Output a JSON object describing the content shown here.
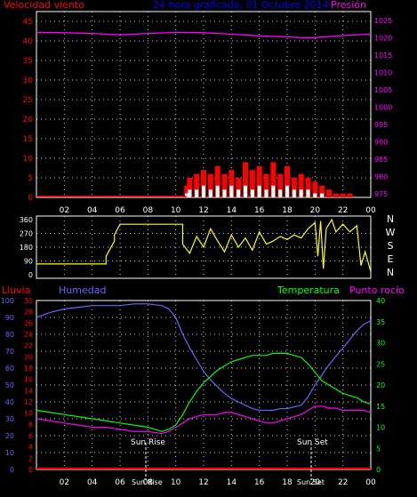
{
  "header": {
    "title": "24 hora graficada, 01 Octubre 2014",
    "left_label": "Velocidad viento",
    "right_label": "Presión"
  },
  "wind_dir_labels": [
    "N",
    "W",
    "S",
    "E",
    "N"
  ],
  "bottom_header": {
    "rain": "Lluvia",
    "humidity": "Humedad",
    "temperature": "Temperatura",
    "dewpoint": "Punto rocío"
  },
  "sun": {
    "rise": "Sun Rise",
    "set": "Sun Set",
    "rise_time": "Sun Rise",
    "set_time": "Sun Set"
  },
  "colors": {
    "wind": "#ff0000",
    "gust": "#ffffff",
    "avg_wind": "#00ff00",
    "pressure": "#ff00ff",
    "direction": "#ffff00",
    "humidity": "#6666ff",
    "temperature": "#00ff00",
    "dewpoint": "#ff00ff",
    "rain": "#ff0000",
    "grid": "#ffffff"
  },
  "chart_data": [
    {
      "type": "line",
      "title": "24 hora graficada, 01 Octubre 2014",
      "x_ticks": [
        "02",
        "04",
        "06",
        "08",
        "10",
        "12",
        "14",
        "16",
        "18",
        "20",
        "22",
        "00"
      ],
      "x_range_hours": [
        0,
        24
      ],
      "y_left": {
        "label": "Velocidad viento",
        "ticks": [
          0,
          5,
          10,
          15,
          20,
          25,
          30,
          35,
          40,
          45
        ],
        "range": [
          0,
          47.5
        ]
      },
      "y_right": {
        "label": "Presión",
        "ticks": [
          975,
          980,
          985,
          990,
          995,
          1000,
          1005,
          1010,
          1015,
          1020,
          1025
        ],
        "range": [
          974,
          1027.5
        ]
      },
      "grid": true,
      "series": [
        {
          "name": "Presión",
          "axis": "right",
          "x": [
            0,
            2,
            4,
            5,
            6,
            8,
            10,
            11,
            12,
            14,
            16,
            18,
            19,
            20,
            22,
            24
          ],
          "values": [
            1021.5,
            1021.4,
            1021.2,
            1021.0,
            1020.8,
            1021.2,
            1021.5,
            1021.5,
            1021.4,
            1021.0,
            1020.5,
            1020.2,
            1020.0,
            1020.0,
            1020.6,
            1021.0
          ]
        },
        {
          "name": "Velocidad viento",
          "axis": "left",
          "x": [
            10.8,
            11,
            11.5,
            12,
            12.5,
            13,
            13.5,
            14,
            14.5,
            15,
            15.5,
            16,
            16.5,
            17,
            17.5,
            18,
            18.5,
            19,
            19.5,
            20,
            20.5,
            21,
            21.5,
            22,
            22.5,
            23,
            23.5
          ],
          "values": [
            3,
            5,
            6,
            7,
            6,
            8,
            6,
            7,
            5,
            9,
            7,
            8,
            6,
            9,
            6,
            8,
            5,
            6,
            5,
            4,
            3,
            2,
            1,
            1,
            1,
            0,
            0
          ]
        },
        {
          "name": "Ráfaga",
          "axis": "left",
          "x": [
            10.8,
            11,
            11.5,
            12,
            12.5,
            13,
            13.5,
            14,
            14.5,
            15,
            15.5,
            16,
            16.5,
            17,
            17.5,
            18,
            18.5,
            19,
            19.5,
            20,
            20.5,
            21
          ],
          "values": [
            1,
            2,
            2,
            3,
            2,
            3,
            2,
            3,
            2,
            3,
            2,
            3,
            2,
            3,
            2,
            3,
            2,
            2,
            2,
            1,
            1,
            0
          ]
        }
      ]
    },
    {
      "type": "line",
      "x_range_hours": [
        0,
        24
      ],
      "y_left": {
        "ticks": [
          0,
          90,
          180,
          270,
          360
        ],
        "range": [
          0,
          360
        ]
      },
      "series": [
        {
          "name": "Dirección viento",
          "x": [
            0,
            5.0,
            5.0,
            5.6,
            5.6,
            6.0,
            6.0,
            10.5,
            10.5,
            11.0,
            11.5,
            12.0,
            12.5,
            13.0,
            13.5,
            14.0,
            14.5,
            15.0,
            15.5,
            16.0,
            16.5,
            17.0,
            17.5,
            18.0,
            18.5,
            19.0,
            19.5,
            20.0,
            20.2,
            20.4,
            20.6,
            20.8,
            21.0,
            21.2,
            21.5,
            22.0,
            22.5,
            23.0,
            23.3,
            23.6,
            24.0
          ],
          "values": [
            70,
            70,
            120,
            220,
            260,
            330,
            330,
            330,
            200,
            140,
            250,
            180,
            300,
            220,
            150,
            260,
            180,
            240,
            160,
            280,
            200,
            220,
            250,
            230,
            260,
            240,
            300,
            340,
            120,
            350,
            40,
            300,
            330,
            360,
            280,
            330,
            280,
            320,
            60,
            150,
            20
          ]
        }
      ]
    },
    {
      "type": "line",
      "x_range_hours": [
        0,
        24
      ],
      "y_left_rain": {
        "label": "Lluvia",
        "ticks": [
          0,
          2,
          4,
          6,
          8,
          10,
          12,
          14,
          16,
          18,
          20,
          22,
          24,
          26,
          28,
          30
        ],
        "range": [
          0,
          30
        ]
      },
      "y_left_humidity": {
        "label": "Humedad",
        "ticks": [
          0,
          10,
          20,
          30,
          40,
          50,
          60,
          70,
          80,
          90,
          100
        ],
        "range": [
          0,
          100
        ]
      },
      "y_right": {
        "label": "Temperatura",
        "ticks": [
          0,
          5,
          10,
          15,
          20,
          25,
          30,
          35,
          40
        ],
        "range": [
          0,
          40
        ]
      },
      "grid": true,
      "series": [
        {
          "name": "Humedad",
          "axis": "humidity",
          "x": [
            0,
            1,
            2,
            3,
            4,
            5,
            6,
            7,
            8,
            9,
            9.5,
            10,
            10.5,
            11,
            11.5,
            12,
            12.5,
            13,
            13.5,
            14,
            14.5,
            15,
            15.5,
            16,
            16.5,
            17,
            17.5,
            18,
            18.5,
            19,
            19.5,
            20,
            20.5,
            21,
            21.5,
            22,
            22.5,
            23,
            23.5,
            24
          ],
          "values": [
            90,
            93,
            95,
            96,
            97,
            97,
            97,
            98,
            98,
            97,
            95,
            90,
            80,
            72,
            65,
            58,
            53,
            49,
            45,
            42,
            40,
            38,
            36,
            35,
            35,
            35,
            36,
            36,
            37,
            38,
            43,
            50,
            56,
            62,
            67,
            72,
            77,
            82,
            86,
            88
          ]
        },
        {
          "name": "Temperatura",
          "axis": "right",
          "x": [
            0,
            1,
            2,
            3,
            4,
            5,
            6,
            7,
            8,
            9,
            9.5,
            10,
            10.5,
            11,
            11.5,
            12,
            12.5,
            13,
            13.5,
            14,
            14.5,
            15,
            15.5,
            16,
            16.5,
            17,
            17.5,
            18,
            18.5,
            19,
            19.5,
            20,
            20.5,
            21,
            21.5,
            22,
            22.5,
            23,
            23.5,
            24
          ],
          "values": [
            14,
            13.5,
            13,
            12.5,
            12,
            11.5,
            11,
            10.5,
            10,
            9,
            9.5,
            10.5,
            13,
            16,
            18.5,
            20.5,
            22,
            23.5,
            24.5,
            25.5,
            26,
            26.5,
            27,
            27,
            27,
            27.5,
            27.5,
            27.5,
            27,
            26.5,
            25,
            23,
            21,
            20,
            19,
            18,
            17.5,
            17,
            16,
            15.5
          ]
        },
        {
          "name": "Punto rocío",
          "axis": "right",
          "x": [
            0,
            1,
            2,
            3,
            4,
            5,
            6,
            7,
            8,
            9,
            9.5,
            10,
            10.5,
            11,
            11.5,
            12,
            12.5,
            13,
            13.5,
            14,
            14.5,
            15,
            15.5,
            16,
            16.5,
            17,
            17.5,
            18,
            18.5,
            19,
            19.5,
            20,
            20.5,
            21,
            21.5,
            22,
            22.5,
            23,
            23.5,
            24
          ],
          "values": [
            12,
            11.5,
            11,
            10.5,
            10,
            10,
            9.5,
            9,
            9,
            8.5,
            9,
            10,
            11,
            12,
            12.5,
            13,
            13,
            13,
            13.5,
            13.5,
            13,
            12.5,
            12,
            11.5,
            11,
            11,
            11.5,
            12,
            12.5,
            13,
            14,
            15,
            15,
            14.5,
            14.5,
            14,
            14,
            14,
            14,
            13.5
          ]
        },
        {
          "name": "Lluvia",
          "axis": "rain",
          "x": [
            0,
            24
          ],
          "values": [
            0,
            0
          ]
        }
      ]
    }
  ]
}
